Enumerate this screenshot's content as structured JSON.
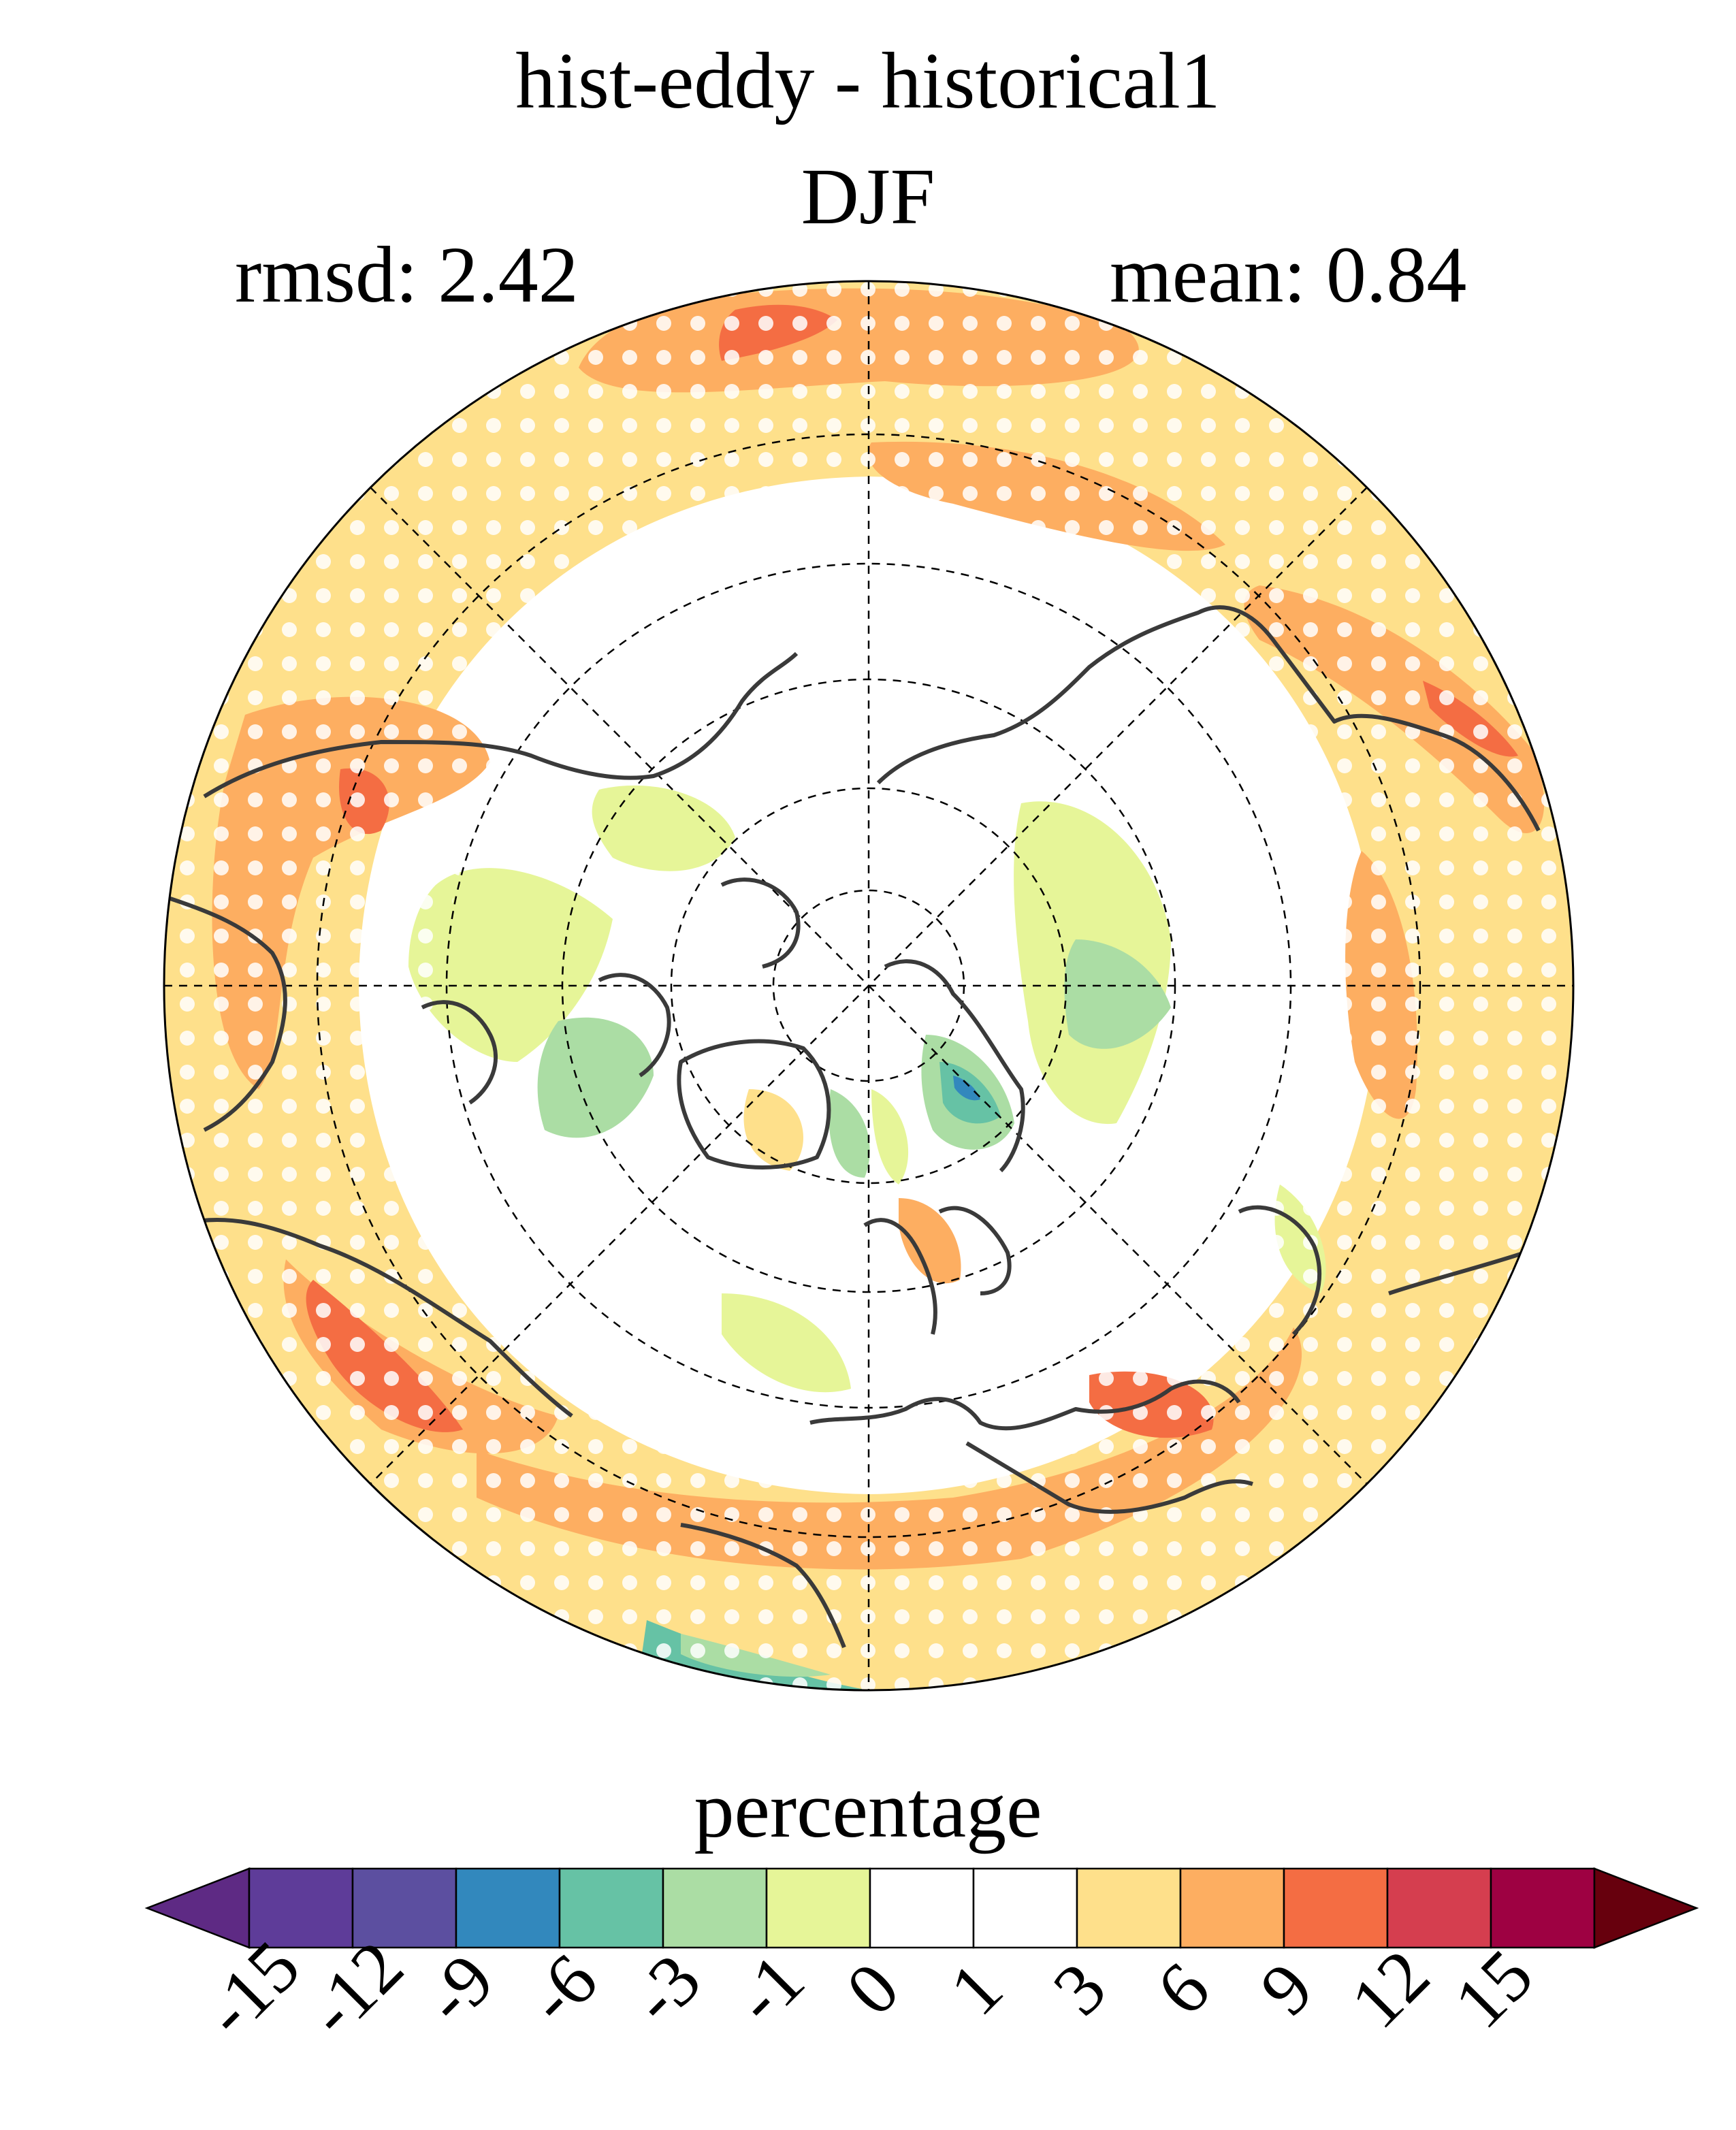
{
  "titles": {
    "experiment": "hist-eddy - historical1",
    "season": "DJF",
    "rmsd": "rmsd: 2.42",
    "mean": "mean: 0.84"
  },
  "map": {
    "projection": "north-polar-stereographic",
    "graticule": "dashed",
    "stippling": "white dots"
  },
  "colorbar": {
    "label": "percentage",
    "ticks": [
      "-15",
      "-12",
      "-9",
      "-6",
      "-3",
      "-1",
      "0",
      "1",
      "3",
      "6",
      "9",
      "12",
      "15"
    ],
    "colors": [
      "#5e3c99",
      "#5c4fa0",
      "#3288bd",
      "#66c2a5",
      "#abdda4",
      "#e6f598",
      "#ffffff",
      "#ffffff",
      "#fee08b",
      "#fdae61",
      "#f46d43",
      "#d53e4f",
      "#9e0142"
    ],
    "under_color": "#5e2a84",
    "over_color": "#67000d"
  }
}
